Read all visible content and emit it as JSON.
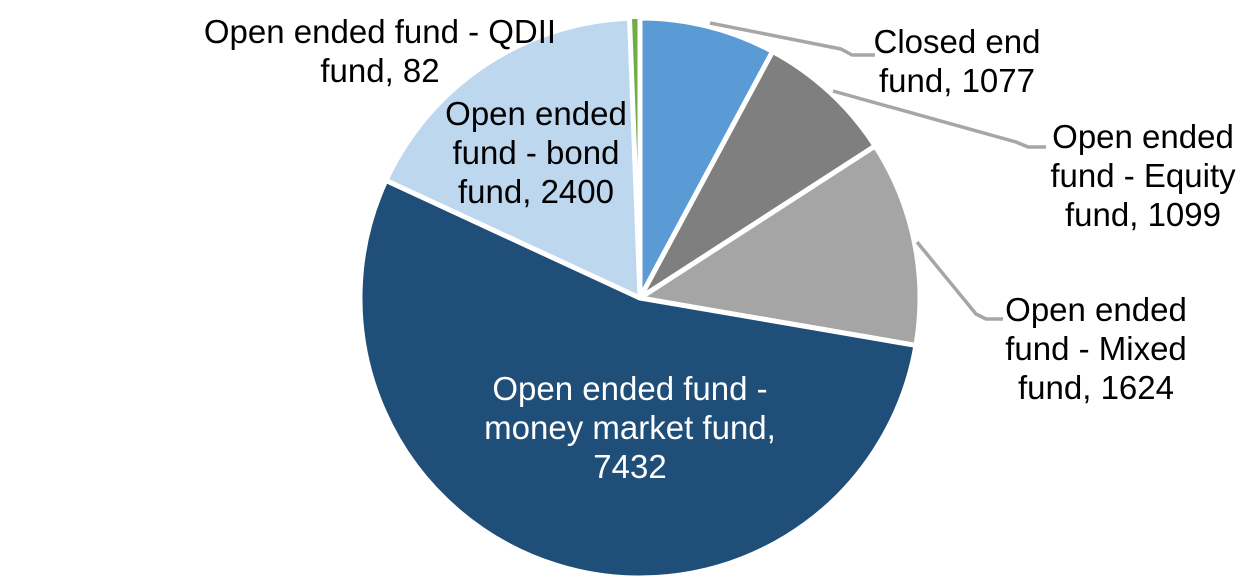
{
  "chart_data": {
    "type": "pie",
    "title": "",
    "background": "#FFFFFF",
    "total": 13714,
    "start_angle_deg": 0,
    "direction": "clockwise",
    "leader_line_color": "#A6A6A6",
    "slice_gap_color": "#FFFFFF",
    "slices": [
      {
        "id": "closed-end-fund",
        "label": "Closed end fund",
        "value": 1077,
        "color": "#5B9BD5",
        "label_lines": [
          "Closed end",
          "fund, 1077"
        ],
        "label_placement": "outside-right",
        "leader_line": true,
        "text_color": "#000000"
      },
      {
        "id": "open-ended-equity-fund",
        "label": "Open ended fund - Equity fund",
        "value": 1099,
        "color": "#7F7F7F",
        "label_lines": [
          "Open ended",
          "fund - Equity",
          "fund, 1099"
        ],
        "label_placement": "outside-right",
        "leader_line": true,
        "text_color": "#000000"
      },
      {
        "id": "open-ended-mixed-fund",
        "label": "Open ended fund - Mixed fund",
        "value": 1624,
        "color": "#A5A5A5",
        "label_lines": [
          "Open ended",
          "fund - Mixed",
          "fund, 1624"
        ],
        "label_placement": "outside-right",
        "leader_line": true,
        "text_color": "#000000"
      },
      {
        "id": "open-ended-money-market-fund",
        "label": "Open ended fund - money market fund",
        "value": 7432,
        "color": "#1F4E79",
        "label_lines": [
          "Open ended fund -",
          "money market fund,",
          "7432"
        ],
        "label_placement": "inside",
        "leader_line": false,
        "text_color": "#FFFFFF"
      },
      {
        "id": "open-ended-bond-fund",
        "label": "Open ended fund - bond fund",
        "value": 2400,
        "color": "#BDD7EE",
        "label_lines": [
          "Open ended",
          "fund - bond",
          "fund, 2400"
        ],
        "label_placement": "inside",
        "leader_line": false,
        "text_color": "#000000"
      },
      {
        "id": "open-ended-qdii-fund",
        "label": "Open ended fund - QDII fund",
        "value": 82,
        "color": "#70AD47",
        "label_lines": [
          "Open ended fund - QDII",
          "fund, 82"
        ],
        "label_placement": "outside-left",
        "leader_line": false,
        "text_color": "#000000"
      }
    ]
  }
}
